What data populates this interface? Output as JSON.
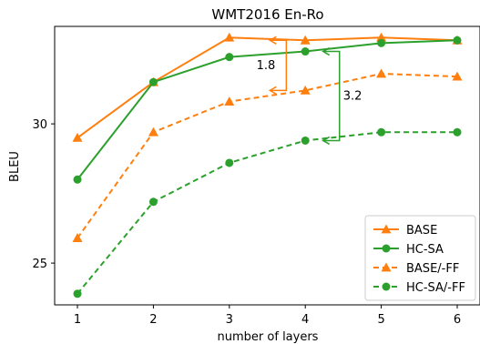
{
  "chart_data": {
    "type": "line",
    "title": "WMT2016 En-Ro",
    "xlabel": "number of layers",
    "ylabel": "BLEU",
    "x": [
      1,
      2,
      3,
      4,
      5,
      6
    ],
    "xlim": [
      0.7,
      6.3
    ],
    "ylim": [
      23.5,
      33.5
    ],
    "xticks": [
      "1",
      "2",
      "3",
      "4",
      "5",
      "6"
    ],
    "yticks": [
      25,
      30
    ],
    "ytick_labels": [
      "25",
      "30"
    ],
    "grid": false,
    "legend_position": "lower right",
    "series": [
      {
        "name": "BASE",
        "values": [
          29.5,
          31.5,
          33.1,
          33.0,
          33.1,
          33.0
        ],
        "color": "#ff7f0e",
        "marker": "triangle",
        "dashed": false
      },
      {
        "name": "HC-SA",
        "values": [
          28.0,
          31.5,
          32.4,
          32.6,
          32.9,
          33.0
        ],
        "color": "#2ca02c",
        "marker": "circle",
        "dashed": false
      },
      {
        "name": "BASE/-FF",
        "values": [
          25.9,
          29.7,
          30.8,
          31.2,
          31.8,
          31.7
        ],
        "color": "#ff7f0e",
        "marker": "triangle",
        "dashed": true
      },
      {
        "name": "HC-SA/-FF",
        "values": [
          23.9,
          27.2,
          28.6,
          29.4,
          29.7,
          29.7
        ],
        "color": "#2ca02c",
        "marker": "circle",
        "dashed": true
      }
    ],
    "annotations": [
      {
        "text": "1.8",
        "x": 3.75,
        "y_from": 33.0,
        "y_to": 31.2,
        "color": "#ff7f0e"
      },
      {
        "text": "3.2",
        "x": 4.45,
        "y_from": 32.6,
        "y_to": 29.4,
        "color": "#2ca02c"
      }
    ]
  }
}
